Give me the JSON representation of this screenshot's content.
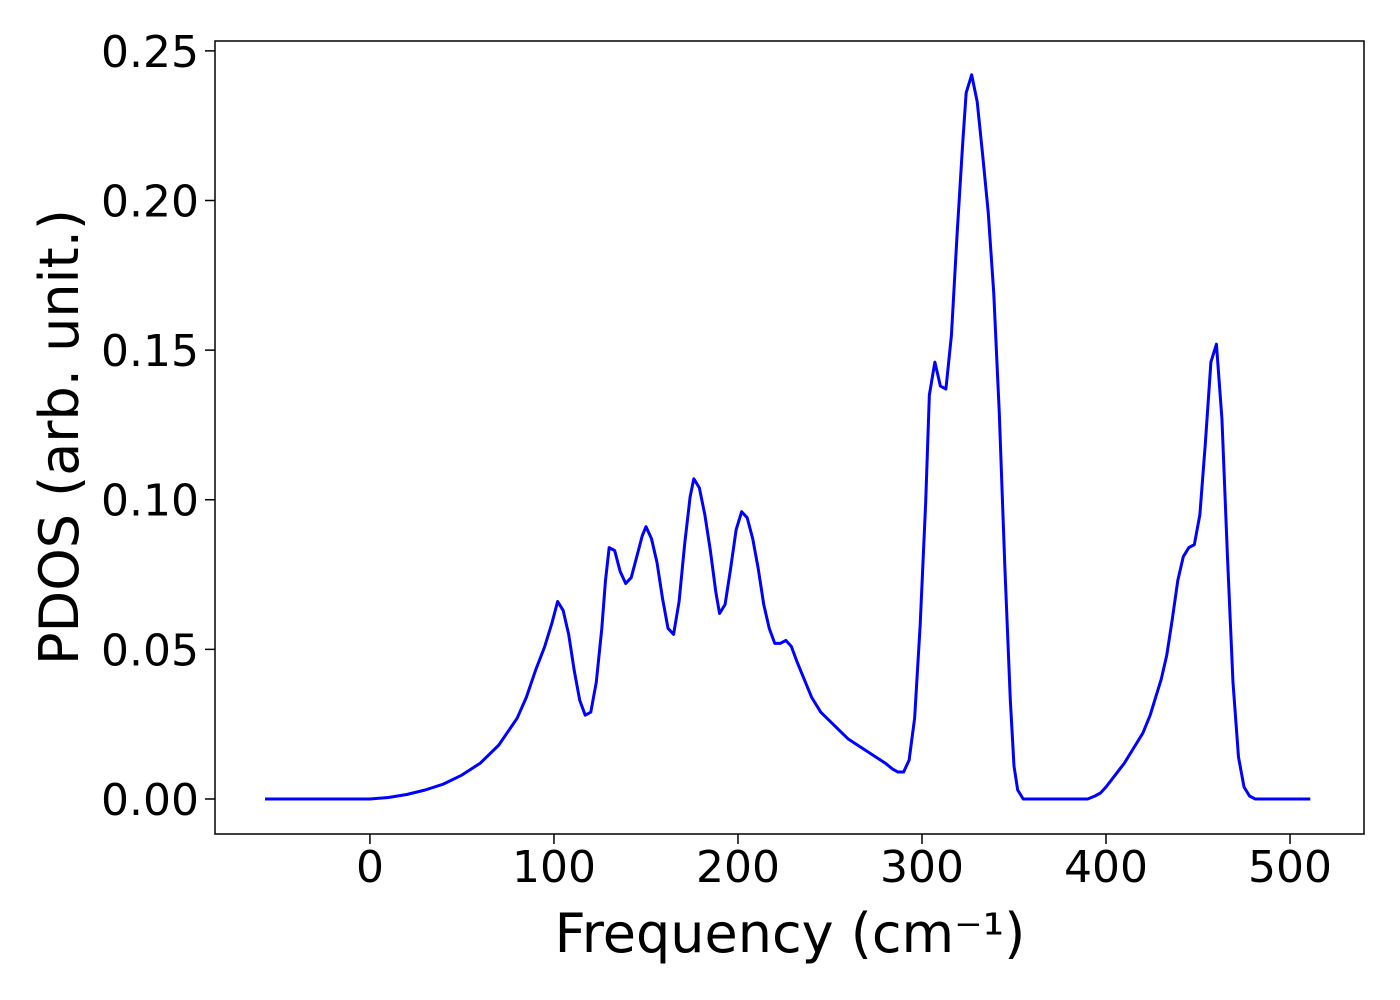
{
  "chart_data": {
    "type": "line",
    "xlabel": "Frequency (cm⁻¹)",
    "ylabel": "PDOS (arb. unit.)",
    "color": "#0000ff",
    "x": [
      -57,
      -20,
      0,
      10,
      20,
      30,
      40,
      50,
      60,
      70,
      80,
      85,
      90,
      95,
      99,
      102,
      105,
      108,
      111,
      114,
      117,
      120,
      123,
      126,
      128,
      130,
      133,
      136,
      139,
      142,
      145,
      148,
      150,
      153,
      156,
      159,
      162,
      165,
      168,
      171,
      174,
      176,
      179,
      182,
      185,
      188,
      190,
      193,
      196,
      199,
      202,
      205,
      208,
      211,
      214,
      217,
      220,
      223,
      226,
      229,
      232,
      236,
      240,
      245,
      250,
      260,
      270,
      280,
      284,
      287,
      290,
      293,
      296,
      299,
      302,
      304,
      307,
      310,
      313,
      316,
      319,
      322,
      324,
      327,
      330,
      333,
      336,
      339,
      342,
      345,
      348,
      350,
      352,
      355,
      390,
      394,
      397,
      400,
      405,
      410,
      415,
      420,
      424,
      427,
      430,
      433,
      436,
      439,
      442,
      445,
      448,
      451,
      454,
      457,
      460,
      463,
      466,
      469,
      472,
      475,
      478,
      481,
      511
    ],
    "values": [
      0,
      0,
      0,
      0.0005,
      0.0015,
      0.003,
      0.005,
      0.008,
      0.012,
      0.018,
      0.027,
      0.034,
      0.043,
      0.051,
      0.059,
      0.066,
      0.063,
      0.055,
      0.043,
      0.033,
      0.028,
      0.029,
      0.039,
      0.057,
      0.073,
      0.084,
      0.083,
      0.076,
      0.072,
      0.074,
      0.081,
      0.088,
      0.091,
      0.087,
      0.079,
      0.067,
      0.057,
      0.055,
      0.066,
      0.085,
      0.101,
      0.107,
      0.104,
      0.095,
      0.083,
      0.069,
      0.062,
      0.065,
      0.077,
      0.09,
      0.096,
      0.094,
      0.087,
      0.077,
      0.065,
      0.057,
      0.052,
      0.052,
      0.053,
      0.051,
      0.046,
      0.04,
      0.034,
      0.029,
      0.026,
      0.02,
      0.016,
      0.012,
      0.01,
      0.009,
      0.009,
      0.013,
      0.027,
      0.058,
      0.099,
      0.135,
      0.146,
      0.138,
      0.137,
      0.155,
      0.188,
      0.218,
      0.236,
      0.242,
      0.233,
      0.215,
      0.196,
      0.169,
      0.129,
      0.078,
      0.033,
      0.011,
      0.003,
      0,
      0,
      0.001,
      0.002,
      0.004,
      0.008,
      0.012,
      0.017,
      0.022,
      0.028,
      0.034,
      0.04,
      0.048,
      0.06,
      0.073,
      0.081,
      0.084,
      0.085,
      0.095,
      0.119,
      0.146,
      0.152,
      0.127,
      0.081,
      0.039,
      0.014,
      0.004,
      0.001,
      0,
      0
    ],
    "xlim": [
      -84.2,
      540.2
    ],
    "ylim": [
      -0.0117,
      0.2533
    ],
    "xticks": [
      0,
      100,
      200,
      300,
      400,
      500
    ],
    "yticks": [
      {
        "value": 0,
        "label": "0.00"
      },
      {
        "value": 0.05,
        "label": "0.05"
      },
      {
        "value": 0.1,
        "label": "0.10"
      },
      {
        "value": 0.15,
        "label": "0.15"
      },
      {
        "value": 0.2,
        "label": "0.20"
      },
      {
        "value": 0.25,
        "label": "0.25"
      }
    ],
    "grid": false
  }
}
